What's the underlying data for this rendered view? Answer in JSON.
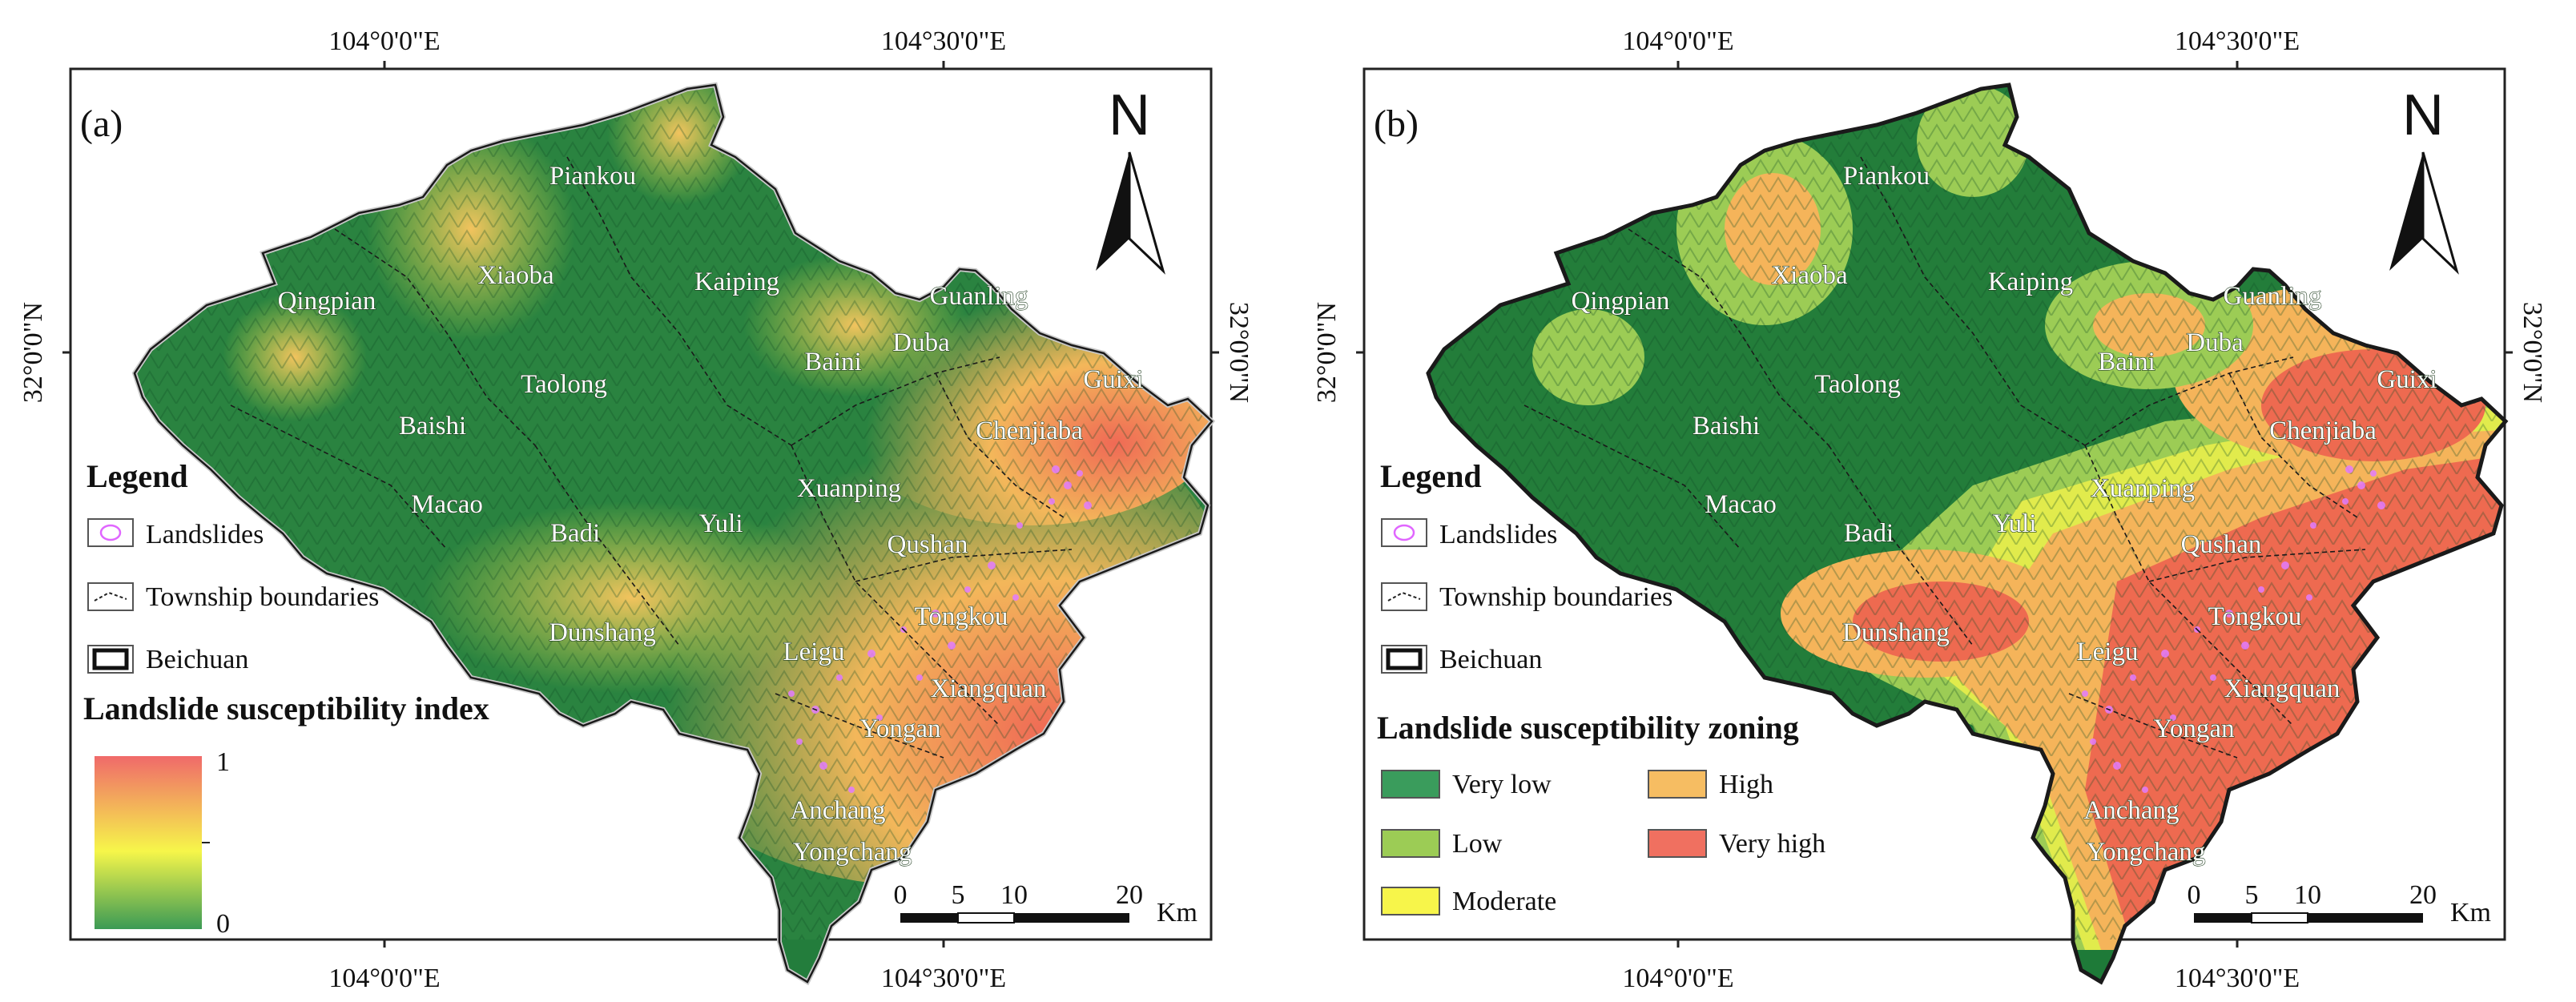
{
  "colors": {
    "very_low": "#2e9a5a",
    "low": "#9ccc55",
    "moderate": "#f3f34a",
    "high": "#f5c167",
    "very_high": "#f07060",
    "landslide": "#e066ff",
    "forest_dark": "#1f7a3a"
  },
  "panels": [
    {
      "label": "(a)",
      "ticks": {
        "top": [
          "104°0'0\"E",
          "104°30'0\"E"
        ],
        "bottom": [
          "104°0'0\"E",
          "104°30'0\"E"
        ],
        "left": "32°0'0\"N",
        "right": "32°0'0\"N"
      },
      "north": "N",
      "places": [
        "Piankou",
        "Xiaoba",
        "Qingpian",
        "Kaiping",
        "Guanling",
        "Baini",
        "Duba",
        "Guixi",
        "Taolong",
        "Baishi",
        "Chenjiaba",
        "Xuanping",
        "Macao",
        "Badi",
        "Yuli",
        "Qushan",
        "Dunshang",
        "Tongkou",
        "Leigu",
        "Xiangquan",
        "Yongan",
        "Anchang",
        "Yongchang"
      ],
      "legend": {
        "title": "Legend",
        "items": [
          "Landslides",
          "Township boundaries",
          "Beichuan"
        ],
        "subtitle": "Landslide susceptibility index",
        "gradient_max": "1",
        "gradient_min": "0"
      },
      "scale": {
        "labels": [
          "0",
          "5",
          "10",
          "20"
        ],
        "unit": "Km"
      }
    },
    {
      "label": "(b)",
      "ticks": {
        "top": [
          "104°0'0\"E",
          "104°30'0\"E"
        ],
        "bottom": [
          "104°0'0\"E",
          "104°30'0\"E"
        ],
        "left": "32°0'0\"N",
        "right": "32°0'0\"N"
      },
      "north": "N",
      "places": [
        "Piankou",
        "Xiaoba",
        "Qingpian",
        "Kaiping",
        "Guanling",
        "Baini",
        "Duba",
        "Guixi",
        "Taolong",
        "Baishi",
        "Chenjiaba",
        "Xuanping",
        "Macao",
        "Badi",
        "Yuli",
        "Qushan",
        "Dunshang",
        "Tongkou",
        "Leigu",
        "Xiangquan",
        "Yongan",
        "Anchang",
        "Yongchang"
      ],
      "legend": {
        "title": "Legend",
        "items": [
          "Landslides",
          "Township boundaries",
          "Beichuan"
        ],
        "subtitle": "Landslide susceptibility zoning",
        "classes": [
          "Very low",
          "High",
          "Low",
          "Very high",
          "Moderate"
        ]
      },
      "scale": {
        "labels": [
          "0",
          "5",
          "10",
          "20"
        ],
        "unit": "Km"
      }
    }
  ]
}
